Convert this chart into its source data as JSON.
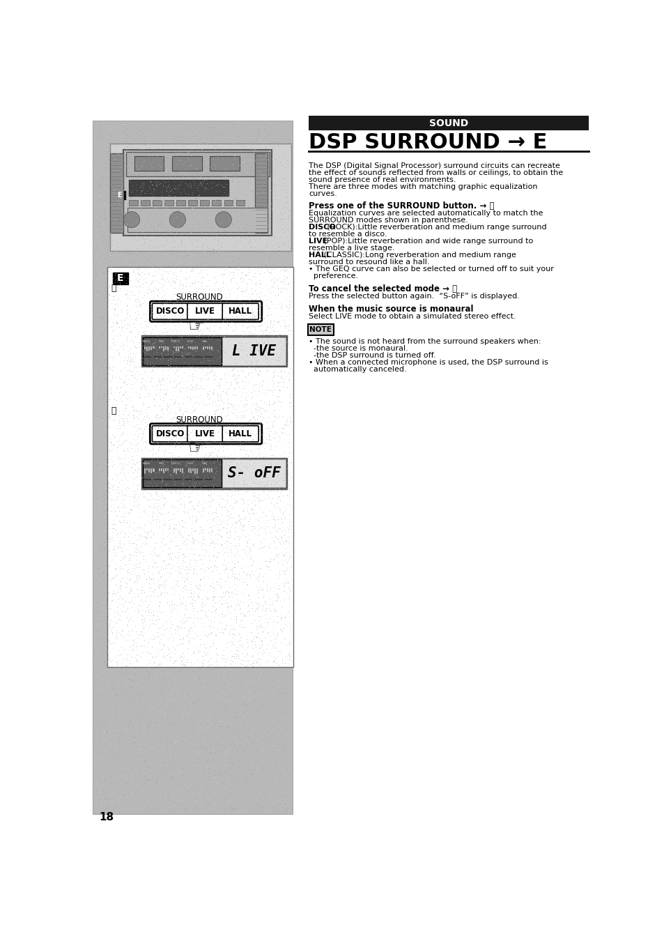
{
  "page_bg": "#ffffff",
  "left_panel_bg": "#c8c8c8",
  "sound_header_bg": "#1a1a1a",
  "sound_header_text": "SOUND",
  "title": "DSP SURROUND → E",
  "title_underline": true,
  "body_text_1": "The DSP (Digital Signal Processor) surround circuits can recreate\nthe effect of sounds reflected from walls or ceilings, to obtain the\nsound presence of real environments.\nThere are three modes with matching graphic equalization\ncurves.",
  "section1_heading": "Press one of the SURROUND button. → ⓐ",
  "section1_body": "Equalization curves are selected automatically to match the\nSURROUND modes shown in parenthese.\nDISCO (ROCK):Little reverberation and medium range surround\nto resemble a disco.\nLIVE (POP):Little reverberation and wide range surround to\nresemble a live stage.\nHALL (CLASSIC):Long reverberation and medium range\nsurround to resound like a hall.\n• The GEQ curve can also be selected or turned off to suit your\n  preference.",
  "section2_heading": "To cancel the selected mode → ⓑ",
  "section2_body": "Press the selected button again.  “S-oFF” is displayed.",
  "section3_heading": "When the music source is monaural",
  "section3_body": "Select LIVE mode to obtain a simulated stereo effect.",
  "note_heading": "NOTE",
  "note_body": "• The sound is not heard from the surround speakers when:\n  -the source is monaural.\n  -the DSP surround is turned off.\n• When a connected microphone is used, the DSP surround is\n  automatically canceled.",
  "surround_buttons": [
    "DISCO",
    "LIVE",
    "HALL"
  ],
  "display_a": "L IVE",
  "display_b": "S- oFF",
  "page_number": "18"
}
